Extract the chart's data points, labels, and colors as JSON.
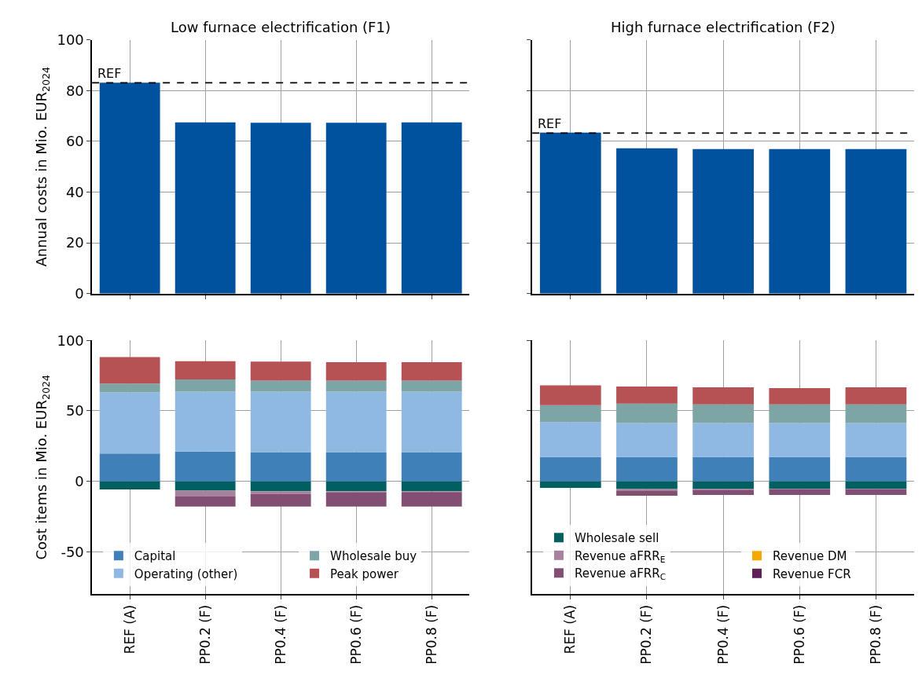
{
  "chart_data": [
    {
      "type": "bar",
      "title": "Low furnace electrification (F1)",
      "ylabel": "Annual costs in Mio. EUR$_{2024}$",
      "categories": [
        "REF (A)",
        "PP0.2 (F)",
        "PP0.4 (F)",
        "PP0.6 (F)",
        "PP0.8 (F)"
      ],
      "values": [
        83.1,
        67.5,
        67.3,
        67.3,
        67.5
      ],
      "color": "#00519e",
      "ylim": [
        0,
        100
      ],
      "yticks": [
        0,
        20,
        40,
        60,
        80,
        100
      ],
      "grid": true,
      "tick_labels": "y",
      "ref_lines": [
        {
          "axis": "y",
          "value": 83.1,
          "label": "REF",
          "color": "#000000",
          "line_style": "dashed"
        }
      ]
    },
    {
      "type": "bar",
      "title": "High furnace electrification (F2)",
      "categories": [
        "REF (A)",
        "PP0.2 (F)",
        "PP0.4 (F)",
        "PP0.6 (F)",
        "PP0.8 (F)"
      ],
      "values": [
        63.5,
        57.3,
        57.0,
        57.0,
        57.0
      ],
      "color": "#00519e",
      "ylim": [
        0,
        100
      ],
      "yticks": [
        0,
        20,
        40,
        60,
        80,
        100
      ],
      "grid": true,
      "tick_labels": false,
      "ref_lines": [
        {
          "axis": "y",
          "value": 63.3,
          "label": "REF",
          "color": "#000000",
          "line_style": "dashed"
        }
      ]
    },
    {
      "type": "bar",
      "ylabel": "Cost items in Mio. EUR$_{2024}$",
      "categories": [
        "REF (A)",
        "PP0.2 (F)",
        "PP0.4 (F)",
        "PP0.6 (F)",
        "PP0.8 (F)"
      ],
      "stacked": true,
      "ylim": [
        -80,
        100
      ],
      "yticks": [
        -50,
        0,
        50,
        100
      ],
      "grid": true,
      "legend": "bottom",
      "series": [
        {
          "name": "Capital",
          "color": "#4080b8",
          "values": [
            19.7,
            21.1,
            20.7,
            20.7,
            20.7
          ]
        },
        {
          "name": "Operating (other)",
          "color": "#8fb8e3",
          "values": [
            43.4,
            42.5,
            42.9,
            42.9,
            42.9
          ]
        },
        {
          "name": "Wholesale buy",
          "color": "#7ea5a6",
          "values": [
            6.2,
            8.7,
            7.8,
            7.8,
            7.8
          ]
        },
        {
          "name": "Peak power",
          "color": "#b65254",
          "values": [
            18.9,
            12.9,
            13.6,
            13.1,
            13.1
          ]
        },
        {
          "color": "#005f60",
          "values": [
            -5.7,
            -6.6,
            -7.0,
            -7.0,
            -7.0
          ]
        },
        {
          "color": "#a6829d",
          "values": [
            0,
            -4.2,
            -1.9,
            -1.0,
            -0.5
          ]
        },
        {
          "color": "#834e73",
          "values": [
            0,
            -7.1,
            -9.0,
            -9.9,
            -10.4
          ]
        },
        {
          "color": "#f5a800",
          "values": [
            0,
            0,
            0,
            0,
            0
          ]
        },
        {
          "color": "#5e1f54",
          "values": [
            0,
            0,
            0,
            0,
            0
          ]
        }
      ]
    },
    {
      "type": "bar",
      "categories": [
        "REF (A)",
        "PP0.2 (F)",
        "PP0.4 (F)",
        "PP0.6 (F)",
        "PP0.8 (F)"
      ],
      "stacked": true,
      "ylim": [
        -80,
        100
      ],
      "yticks": [
        -50,
        0,
        50,
        100
      ],
      "grid": true,
      "legend": "bottom",
      "tick_labels": "x",
      "series": [
        {
          "color": "#4080b8",
          "values": [
            17.2,
            17.2,
            17.2,
            17.2,
            17.2
          ]
        },
        {
          "color": "#8fb8e3",
          "values": [
            24.7,
            24.2,
            24.2,
            24.2,
            24.2
          ]
        },
        {
          "color": "#7ea5a6",
          "values": [
            12.1,
            13.7,
            13.2,
            13.2,
            13.2
          ]
        },
        {
          "color": "#b65254",
          "values": [
            14.1,
            12.1,
            12.1,
            11.5,
            12.1
          ]
        },
        {
          "name": "Wholesale sell",
          "color": "#005f60",
          "values": [
            -4.6,
            -5.4,
            -5.4,
            -5.4,
            -5.4
          ]
        },
        {
          "name": "Revenue aFRR$_{E}$",
          "color": "#a6829d",
          "values": [
            0,
            -1.4,
            -0.9,
            -0.4,
            -0.4
          ]
        },
        {
          "name": "Revenue aFRR$_{C}$",
          "color": "#834e73",
          "values": [
            0,
            -3.4,
            -3.3,
            -3.8,
            -3.8
          ]
        },
        {
          "name": "Revenue DM",
          "color": "#f5a800",
          "values": [
            0,
            0,
            0,
            0,
            0
          ]
        },
        {
          "name": "Revenue FCR",
          "color": "#5e1f54",
          "values": [
            0,
            0,
            0,
            0,
            0
          ]
        }
      ]
    }
  ]
}
